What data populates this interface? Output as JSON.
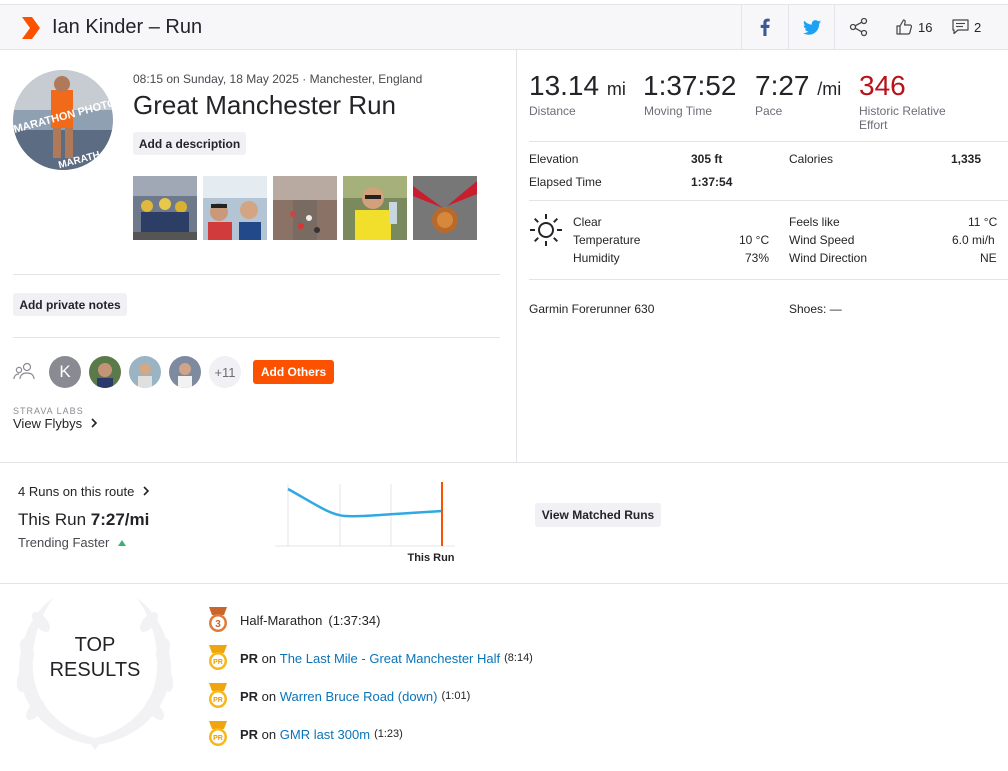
{
  "header": {
    "title": "Ian Kinder – Run",
    "kudos_count": "16",
    "comments_count": "2"
  },
  "activity": {
    "meta": "08:15 on Sunday, 18 May 2025 · Manchester, England",
    "name": "Great Manchester Run",
    "add_description": "Add a description",
    "add_private_notes": "Add private notes",
    "avatar_overlay_top": "MARATHON PHOTO",
    "avatar_overlay_bottom": "MARATH"
  },
  "group": {
    "initial": "K",
    "more": "+11",
    "add_others": "Add Others"
  },
  "flybys": {
    "labs": "STRAVA LABS",
    "link": "View Flybys"
  },
  "stats": {
    "distance": {
      "value": "13.14",
      "unit": "mi",
      "label": "Distance"
    },
    "moving_time": {
      "value": "1:37:52",
      "label": "Moving Time"
    },
    "pace": {
      "value": "7:27",
      "unit": "/mi",
      "label": "Pace"
    },
    "effort": {
      "value": "346",
      "label_1": "Historic Relative",
      "label_2": "Effort"
    }
  },
  "details": {
    "elevation_label": "Elevation",
    "elevation_value": "305 ft",
    "calories_label": "Calories",
    "calories_value": "1,335",
    "elapsed_label": "Elapsed Time",
    "elapsed_value": "1:37:54"
  },
  "weather": {
    "condition": "Clear",
    "temperature_label": "Temperature",
    "temperature_value": "10 °C",
    "humidity_label": "Humidity",
    "humidity_value": "73%",
    "feels_label": "Feels like",
    "feels_value": "11 °C",
    "wind_speed_label": "Wind Speed",
    "wind_speed_value": "6.0 mi/h",
    "wind_dir_label": "Wind Direction",
    "wind_dir_value": "NE"
  },
  "gear": {
    "device": "Garmin Forerunner 630",
    "shoes": "Shoes: —"
  },
  "route": {
    "count": "4 Runs on this route",
    "this_run_label": "This Run",
    "this_run_value": "7:27/mi",
    "trending": "Trending Faster",
    "chart_marker_label": "This Run",
    "view_matched": "View Matched Runs"
  },
  "top_results": {
    "title_1": "TOP",
    "title_2": "RESULTS",
    "items": [
      {
        "medal": "3",
        "bold": "",
        "prefix": "Half-Marathon",
        "link": "",
        "time": "(1:37:34)"
      },
      {
        "medal": "PR",
        "bold": "PR",
        "prefix": " on ",
        "link": "The Last Mile - Great Manchester Half",
        "time": "(8:14)"
      },
      {
        "medal": "PR",
        "bold": "PR",
        "prefix": " on ",
        "link": "Warren Bruce Road (down)",
        "time": "(1:01)"
      },
      {
        "medal": "PR",
        "bold": "PR",
        "prefix": " on ",
        "link": "GMR last 300m",
        "time": "(1:23)"
      }
    ]
  },
  "colors": {
    "brand": "#fc5200",
    "link": "#0a74b9",
    "effort": "#b8121a",
    "route_line": "#2fa9e0"
  }
}
